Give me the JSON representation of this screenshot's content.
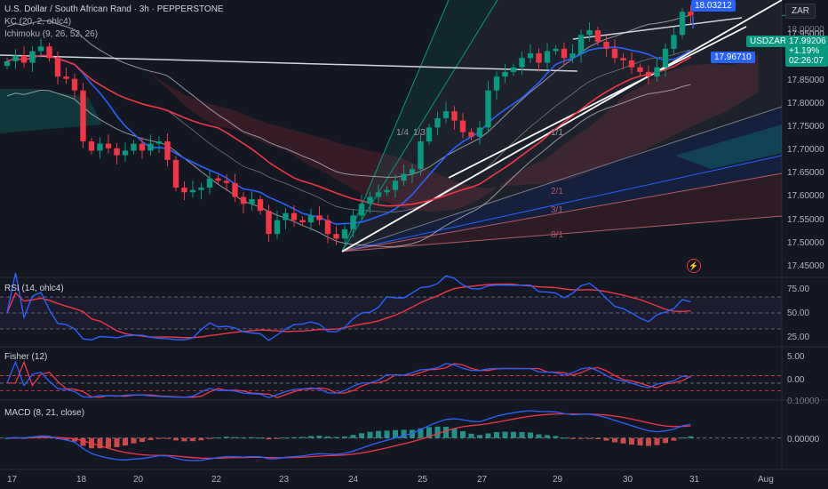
{
  "header": {
    "symbol_line": "U.S. Dollar / South African Rand · 3h · PEPPERSTONE",
    "indicator_kc": "KC (20, 2, ohlc4)",
    "indicator_ichimoku": "Ichimoku (9, 26, 52, 26)"
  },
  "price_axis": {
    "currency": "ZAR",
    "ticks": [
      "17.95000",
      "17.90000",
      "17.85000",
      "17.80000",
      "17.75000",
      "17.70000",
      "17.65000",
      "17.60000",
      "17.55000",
      "17.50000",
      "17.45000"
    ],
    "symbol_tag": "USDZAR",
    "last_price": "17.99206",
    "change_pct": "+1.19%",
    "countdown": "02:26:07",
    "top_value": "18.00000"
  },
  "annotations": {
    "high_label": "18.03212",
    "marker_label": "17.96710",
    "fan_labels": [
      "1/4",
      "1/3",
      "1/1",
      "2/1",
      "3/1",
      "8/1"
    ]
  },
  "rsi": {
    "title": "RSI (14, ohlc4)",
    "ticks": [
      "75.00",
      "50.00",
      "25.00"
    ]
  },
  "fisher": {
    "title": "Fisher (12)",
    "ticks": [
      "5.00",
      "0.00"
    ]
  },
  "macd": {
    "title": "MACD (8, 21, close)",
    "ticks": [
      "0.10000",
      "0.00000"
    ]
  },
  "time_axis": {
    "labels": [
      "17",
      "18",
      "20",
      "22",
      "23",
      "24",
      "25",
      "27",
      "29",
      "30",
      "31",
      "Aug"
    ]
  },
  "colors": {
    "up": "#089981",
    "down": "#f23645",
    "blue": "#2962ff",
    "red_line": "#f23645",
    "background": "#131722"
  },
  "chart_data": {
    "type": "candlestick",
    "close": [
      17.893,
      17.905,
      17.89,
      17.915,
      17.925,
      17.9,
      17.86,
      17.855,
      17.83,
      17.72,
      17.7,
      17.715,
      17.705,
      17.69,
      17.7,
      17.715,
      17.7,
      17.715,
      17.72,
      17.68,
      17.62,
      17.61,
      17.615,
      17.62,
      17.64,
      17.635,
      17.63,
      17.6,
      17.585,
      17.595,
      17.57,
      17.52,
      17.55,
      17.565,
      17.55,
      17.545,
      17.56,
      17.55,
      17.52,
      17.51,
      17.53,
      17.56,
      17.585,
      17.6,
      17.61,
      17.615,
      17.635,
      17.65,
      17.66,
      17.72,
      17.75,
      17.77,
      17.785,
      17.765,
      17.74,
      17.73,
      17.75,
      17.83,
      17.86,
      17.87,
      17.88,
      17.9,
      17.91,
      17.89,
      17.915,
      17.92,
      17.9,
      17.91,
      17.95,
      17.96,
      17.935,
      17.92,
      17.9,
      17.895,
      17.88,
      17.87,
      17.86,
      17.88,
      17.92,
      17.95,
      18.0,
      17.99206
    ],
    "price_ylim": [
      17.43,
      18.01
    ],
    "rsi_ylim": [
      10,
      90
    ],
    "fisher_ylim": [
      -3,
      6.5
    ],
    "macd_ylim": [
      -0.09,
      0.11
    ]
  }
}
